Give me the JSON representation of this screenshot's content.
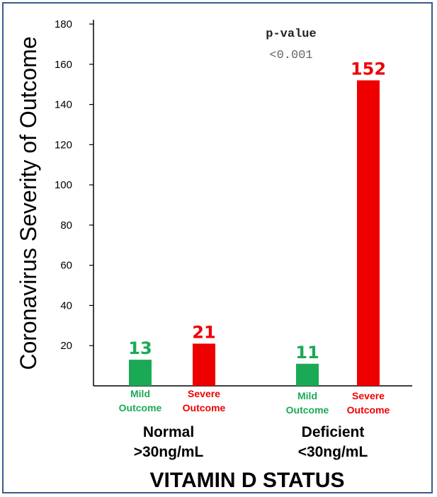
{
  "chart_data": {
    "type": "bar",
    "title": "",
    "ylabel": "Coronavirus Severity of Outcome",
    "xlabel": "VITAMIN D STATUS",
    "ylim": [
      0,
      180
    ],
    "yticks": [
      20,
      40,
      60,
      80,
      100,
      120,
      140,
      160,
      180
    ],
    "groups": [
      {
        "label_line1": "Normal",
        "label_line2": ">30ng/mL"
      },
      {
        "label_line1": "Deficient",
        "label_line2": "<30ng/mL"
      }
    ],
    "bars": [
      {
        "group": 0,
        "category_line1": "Mild",
        "category_line2": "Outcome",
        "value": 13,
        "label": "13",
        "color": "#1aaa55"
      },
      {
        "group": 0,
        "category_line1": "Severe",
        "category_line2": "Outcome",
        "value": 21,
        "label": "21",
        "color": "#ee0000"
      },
      {
        "group": 1,
        "category_line1": "Mild",
        "category_line2": "Outcome",
        "value": 11,
        "label": "11",
        "color": "#1aaa55"
      },
      {
        "group": 1,
        "category_line1": "Severe",
        "category_line2": "Outcome",
        "value": 152,
        "label": "152",
        "color": "#ee0000"
      }
    ],
    "annotation": {
      "title": "p-value",
      "value": "<0.001"
    }
  }
}
